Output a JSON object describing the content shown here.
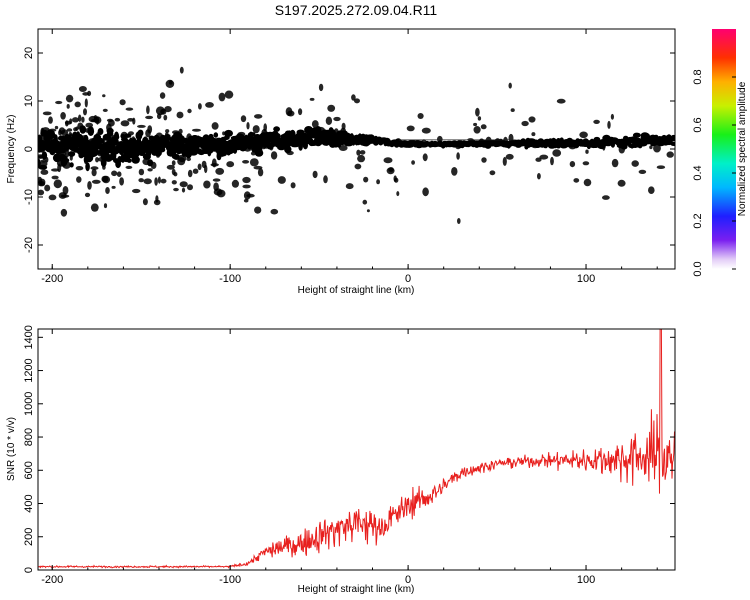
{
  "colors": {
    "axis": "#000000",
    "snr_line": "#e8201e",
    "background": "#ffffff"
  },
  "chart_data": [
    {
      "type": "heatmap",
      "title": "S197.2025.272.09.04.R11",
      "xlabel": "Height of straight line (km)",
      "ylabel": "Frequency (Hz)",
      "xlim": [
        -208,
        150
      ],
      "ylim": [
        -25,
        25
      ],
      "xticks": [
        -200,
        -100,
        0,
        100
      ],
      "yticks": [
        -20,
        -10,
        0,
        10,
        20
      ],
      "colorbar": {
        "label": "Normalized spectral amplitude",
        "range": [
          0,
          1
        ],
        "ticks": [
          0.0,
          0.2,
          0.4,
          0.6,
          0.8
        ],
        "tick_labels": [
          "0.0",
          "0.2",
          "0.4",
          "0.6",
          "0.8"
        ]
      },
      "ridge": [
        {
          "x": -200,
          "f": 0.5,
          "amp": 0.25,
          "spread": 6.5
        },
        {
          "x": -150,
          "f": 0.5,
          "amp": 0.3,
          "spread": 5.5
        },
        {
          "x": -100,
          "f": 1.0,
          "amp": 0.35,
          "spread": 4.0
        },
        {
          "x": -50,
          "f": 2.5,
          "amp": 0.45,
          "spread": 3.0
        },
        {
          "x": -20,
          "f": 1.8,
          "amp": 0.6,
          "spread": 1.5
        },
        {
          "x": 0,
          "f": 1.0,
          "amp": 0.75,
          "spread": 0.8
        },
        {
          "x": 25,
          "f": 1.0,
          "amp": 0.95,
          "spread": 0.6
        },
        {
          "x": 50,
          "f": 1.2,
          "amp": 0.7,
          "spread": 1.0
        },
        {
          "x": 100,
          "f": 1.2,
          "amp": 0.7,
          "spread": 1.5
        },
        {
          "x": 150,
          "f": 2.0,
          "amp": 0.6,
          "spread": 2.5
        }
      ]
    },
    {
      "type": "line",
      "xlabel": "Height of straight line (km)",
      "ylabel": "SNR (10 * v/v)",
      "xlim": [
        -208,
        150
      ],
      "ylim": [
        0,
        1450
      ],
      "xticks": [
        -200,
        -100,
        0,
        100
      ],
      "yticks": [
        0,
        200,
        400,
        600,
        800,
        1000,
        1200,
        1400
      ],
      "series": [
        {
          "name": "SNR",
          "envelope": [
            {
              "x": -208,
              "y": 20,
              "noise": 8
            },
            {
              "x": -100,
              "y": 20,
              "noise": 8
            },
            {
              "x": -90,
              "y": 40,
              "noise": 20
            },
            {
              "x": -80,
              "y": 110,
              "noise": 60
            },
            {
              "x": -70,
              "y": 140,
              "noise": 90
            },
            {
              "x": -60,
              "y": 160,
              "noise": 110
            },
            {
              "x": -45,
              "y": 230,
              "noise": 160
            },
            {
              "x": -30,
              "y": 280,
              "noise": 190
            },
            {
              "x": -15,
              "y": 260,
              "noise": 140
            },
            {
              "x": 0,
              "y": 390,
              "noise": 120
            },
            {
              "x": 15,
              "y": 460,
              "noise": 100
            },
            {
              "x": 30,
              "y": 590,
              "noise": 60
            },
            {
              "x": 50,
              "y": 640,
              "noise": 40
            },
            {
              "x": 75,
              "y": 660,
              "noise": 60
            },
            {
              "x": 100,
              "y": 660,
              "noise": 110
            },
            {
              "x": 120,
              "y": 670,
              "noise": 190
            },
            {
              "x": 135,
              "y": 690,
              "noise": 300
            },
            {
              "x": 150,
              "y": 700,
              "noise": 380
            }
          ],
          "peak": {
            "x": 142,
            "y": 1450
          }
        }
      ]
    }
  ]
}
